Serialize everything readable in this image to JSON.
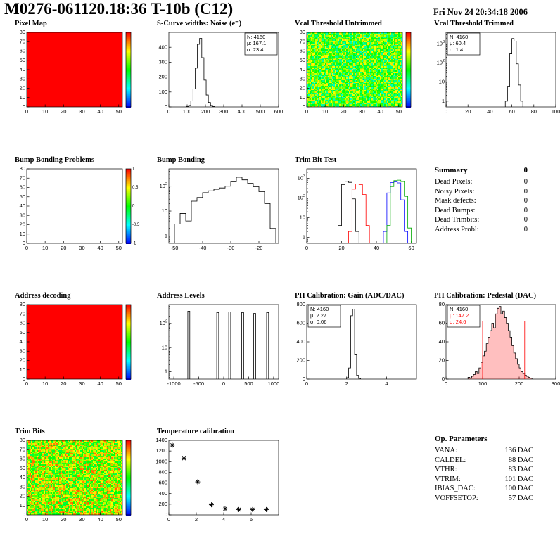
{
  "header": {
    "title": "M0276-061120.18:36 T-10b (C12)",
    "date": "Fri Nov 24 20:34:18 2006"
  },
  "summary": {
    "title": "Summary",
    "value": "0",
    "rows": [
      {
        "label": "Dead Pixels:",
        "value": "0"
      },
      {
        "label": "Noisy Pixels:",
        "value": "0"
      },
      {
        "label": "Mask defects:",
        "value": "0"
      },
      {
        "label": "Dead Bumps:",
        "value": "0"
      },
      {
        "label": "Dead Trimbits:",
        "value": "0"
      },
      {
        "label": "Address Probl:",
        "value": "0"
      }
    ]
  },
  "op_parameters": {
    "title": "Op. Parameters",
    "rows": [
      {
        "label": "VANA:",
        "value": "136 DAC"
      },
      {
        "label": "CALDEL:",
        "value": "88 DAC"
      },
      {
        "label": "VTHR:",
        "value": "83 DAC"
      },
      {
        "label": "VTRIM:",
        "value": "101 DAC"
      },
      {
        "label": "IBIAS_DAC:",
        "value": "100 DAC"
      },
      {
        "label": "VOFFSETOP:",
        "value": "57 DAC"
      }
    ]
  },
  "chart_data": [
    {
      "type": "heatmap",
      "title": "Pixel Map",
      "x": {
        "min": 0,
        "max": 52,
        "ticks": [
          0,
          10,
          20,
          30,
          40,
          50
        ]
      },
      "y": {
        "min": 0,
        "max": 80,
        "ticks": [
          0,
          10,
          20,
          30,
          40,
          50,
          60,
          70,
          80
        ]
      },
      "map": {
        "mode": "solid",
        "color": "#ff0000"
      },
      "colorbar": true
    },
    {
      "type": "hist",
      "title": "S-Curve widths: Noise (e⁻)",
      "x": {
        "min": 0,
        "max": 600,
        "ticks": [
          0,
          100,
          200,
          300,
          400,
          500,
          600
        ]
      },
      "y": {
        "min": 0,
        "max": 500,
        "ticks": [
          0,
          100,
          200,
          300,
          400
        ]
      },
      "bin_width": 12,
      "bins": [
        [
          96,
          2
        ],
        [
          108,
          10
        ],
        [
          120,
          40
        ],
        [
          132,
          120
        ],
        [
          144,
          260
        ],
        [
          156,
          420
        ],
        [
          168,
          460
        ],
        [
          180,
          330
        ],
        [
          192,
          180
        ],
        [
          204,
          80
        ],
        [
          216,
          30
        ],
        [
          228,
          10
        ],
        [
          240,
          3
        ]
      ],
      "stats": {
        "pos": "tr",
        "lines": [
          {
            "text": "N: 4160"
          },
          {
            "text": "μ: 167.1"
          },
          {
            "text": "σ: 23.4"
          }
        ]
      }
    },
    {
      "type": "heatmap",
      "title": "Vcal Threshold Untrimmed",
      "x": {
        "min": 0,
        "max": 52,
        "ticks": [
          0,
          10,
          20,
          30,
          40,
          50
        ]
      },
      "y": {
        "min": 0,
        "max": 80,
        "ticks": [
          0,
          10,
          20,
          30,
          40,
          50,
          60,
          70,
          80
        ]
      },
      "map": {
        "mode": "noise",
        "base": 0.55,
        "spread": 0.5,
        "seed": 7
      },
      "colorbar": true
    },
    {
      "type": "hist",
      "title": "Vcal Threshold Trimmed",
      "logy": true,
      "x": {
        "min": 0,
        "max": 100,
        "ticks": [
          0,
          20,
          40,
          60,
          80,
          100
        ]
      },
      "y": {
        "min": 0.5,
        "max": 4000
      },
      "bin_width": 2,
      "bins": [
        [
          54,
          1
        ],
        [
          56,
          6
        ],
        [
          58,
          300
        ],
        [
          60,
          1900
        ],
        [
          62,
          1400
        ],
        [
          64,
          90
        ],
        [
          66,
          7
        ],
        [
          68,
          1
        ]
      ],
      "stats": {
        "pos": "tl",
        "lines": [
          {
            "text": "N: 4160"
          },
          {
            "text": "μ: 60.4"
          },
          {
            "text": "σ: 1.4"
          }
        ]
      }
    },
    {
      "type": "heatmap",
      "title": "Bump Bonding Problems",
      "x": {
        "min": 0,
        "max": 52,
        "ticks": [
          0,
          10,
          20,
          30,
          40,
          50
        ]
      },
      "y": {
        "min": 0,
        "max": 80,
        "ticks": [
          0,
          10,
          20,
          30,
          40,
          50,
          60,
          70,
          80
        ]
      },
      "map": {
        "mode": "empty"
      },
      "colorbar": true,
      "colorbar_labels": [
        "1",
        "0.5",
        "0",
        "-0.5",
        "-1"
      ]
    },
    {
      "type": "hist",
      "title": "Bump Bonding",
      "logy": true,
      "x": {
        "min": -52,
        "max": -13,
        "ticks": [
          -50,
          -40,
          -30,
          -20
        ]
      },
      "y": {
        "min": 0.5,
        "max": 500
      },
      "bin_width": 2,
      "bins": [
        [
          -50,
          3
        ],
        [
          -48,
          8
        ],
        [
          -46,
          4
        ],
        [
          -44,
          25
        ],
        [
          -42,
          35
        ],
        [
          -40,
          55
        ],
        [
          -38,
          65
        ],
        [
          -36,
          75
        ],
        [
          -34,
          85
        ],
        [
          -32,
          100
        ],
        [
          -30,
          150
        ],
        [
          -28,
          230
        ],
        [
          -26,
          180
        ],
        [
          -24,
          130
        ],
        [
          -22,
          95
        ],
        [
          -20,
          60
        ],
        [
          -18,
          20
        ],
        [
          -16,
          2
        ]
      ]
    },
    {
      "type": "multihist",
      "title": "Trim Bit Test",
      "logy": true,
      "x": {
        "min": 0,
        "max": 63,
        "ticks": [
          0,
          20,
          40,
          60
        ]
      },
      "y": {
        "min": 0.5,
        "max": 3000
      },
      "bin_width": 2,
      "series": [
        {
          "color": "#000000",
          "bins": [
            [
              18,
              4
            ],
            [
              20,
              480
            ],
            [
              22,
              700
            ],
            [
              24,
              620
            ],
            [
              26,
              90
            ],
            [
              28,
              2
            ]
          ]
        },
        {
          "color": "#ff0000",
          "bins": [
            [
              24,
              2
            ],
            [
              26,
              280
            ],
            [
              28,
              520
            ],
            [
              30,
              480
            ],
            [
              32,
              150
            ],
            [
              34,
              4
            ]
          ]
        },
        {
          "color": "#0000ff",
          "bins": [
            [
              44,
              2
            ],
            [
              46,
              180
            ],
            [
              48,
              600
            ],
            [
              50,
              650
            ],
            [
              52,
              580
            ],
            [
              54,
              80
            ],
            [
              56,
              2
            ]
          ]
        },
        {
          "color": "#00aa00",
          "bins": [
            [
              46,
              4
            ],
            [
              48,
              380
            ],
            [
              50,
              760
            ],
            [
              52,
              800
            ],
            [
              54,
              680
            ],
            [
              56,
              120
            ],
            [
              58,
              3
            ]
          ]
        }
      ]
    },
    {
      "type": "heatmap",
      "title": "Address decoding",
      "x": {
        "min": 0,
        "max": 52,
        "ticks": [
          0,
          10,
          20,
          30,
          40,
          50
        ]
      },
      "y": {
        "min": 0,
        "max": 80,
        "ticks": [
          0,
          10,
          20,
          30,
          40,
          50,
          60,
          70,
          80
        ]
      },
      "map": {
        "mode": "solid",
        "color": "#ff0000"
      },
      "colorbar": true
    },
    {
      "type": "spikes",
      "title": "Address Levels",
      "logy": true,
      "x": {
        "min": -1100,
        "max": 1100,
        "ticks": [
          -1000,
          -500,
          0,
          500,
          1000
        ]
      },
      "y": {
        "min": 0.5,
        "max": 600
      },
      "spike_width": 40,
      "points": [
        [
          -700,
          320
        ],
        [
          -120,
          280
        ],
        [
          120,
          300
        ],
        [
          380,
          280
        ],
        [
          620,
          260
        ],
        [
          880,
          280
        ]
      ]
    },
    {
      "type": "hist",
      "title": "PH Calibration: Gain (ADC/DAC)",
      "x": {
        "min": 0,
        "max": 5.5,
        "ticks": [
          0,
          2,
          4
        ]
      },
      "y": {
        "min": 0,
        "max": 800,
        "ticks": [
          0,
          200,
          400,
          600,
          800
        ]
      },
      "bin_width": 0.1,
      "bins": [
        [
          2.0,
          15
        ],
        [
          2.1,
          120
        ],
        [
          2.2,
          680
        ],
        [
          2.3,
          750
        ],
        [
          2.4,
          260
        ],
        [
          2.5,
          40
        ],
        [
          2.6,
          8
        ]
      ],
      "stats": {
        "pos": "tl",
        "lines": [
          {
            "text": "N: 4160"
          },
          {
            "text": "μ: 2.27"
          },
          {
            "text": "σ: 0.06"
          }
        ]
      }
    },
    {
      "type": "hist",
      "title": "PH Calibration: Pedestal (DAC)",
      "x": {
        "min": 0,
        "max": 300,
        "ticks": [
          0,
          100,
          200,
          300
        ]
      },
      "y": {
        "min": 0,
        "max": 80,
        "ticks": [
          0,
          20,
          40,
          60,
          80
        ]
      },
      "bin_width": 5,
      "fill": "rgba(255,0,0,0.25)",
      "bins": [
        [
          60,
          2
        ],
        [
          65,
          1
        ],
        [
          70,
          3
        ],
        [
          75,
          5
        ],
        [
          80,
          8
        ],
        [
          85,
          6
        ],
        [
          90,
          12
        ],
        [
          95,
          18
        ],
        [
          100,
          25
        ],
        [
          105,
          30
        ],
        [
          110,
          38
        ],
        [
          115,
          45
        ],
        [
          120,
          52
        ],
        [
          125,
          60
        ],
        [
          130,
          55
        ],
        [
          135,
          70
        ],
        [
          140,
          76
        ],
        [
          145,
          78
        ],
        [
          150,
          70
        ],
        [
          155,
          73
        ],
        [
          160,
          66
        ],
        [
          165,
          60
        ],
        [
          170,
          52
        ],
        [
          175,
          45
        ],
        [
          180,
          36
        ],
        [
          185,
          28
        ],
        [
          190,
          22
        ],
        [
          195,
          16
        ],
        [
          200,
          12
        ],
        [
          205,
          8
        ],
        [
          210,
          6
        ],
        [
          215,
          4
        ],
        [
          220,
          3
        ],
        [
          225,
          2
        ],
        [
          230,
          1
        ]
      ],
      "vlines": [
        {
          "x": 100,
          "y": 62,
          "color": "#ff0000"
        },
        {
          "x": 215,
          "y": 62,
          "color": "#ff0000"
        }
      ],
      "stats": {
        "pos": "tl",
        "lines": [
          {
            "text": "N: 4160",
            "color": "#000000"
          },
          {
            "text": "μ: 147.2",
            "color": "#ff0000"
          },
          {
            "text": "σ: 24.6",
            "color": "#ff0000"
          }
        ]
      }
    },
    {
      "type": "heatmap",
      "title": "Trim Bits",
      "x": {
        "min": 0,
        "max": 52,
        "ticks": [
          0,
          10,
          20,
          30,
          40,
          50
        ]
      },
      "y": {
        "min": 0,
        "max": 80,
        "ticks": [
          0,
          10,
          20,
          30,
          40,
          50,
          60,
          70,
          80
        ]
      },
      "map": {
        "mode": "noise",
        "base": 0.66,
        "spread": 0.5,
        "seed": 13
      },
      "colorbar": true
    },
    {
      "type": "scatter",
      "title": "Temperature calibration",
      "x": {
        "min": 0,
        "max": 8,
        "ticks": [
          0,
          2,
          4,
          6
        ]
      },
      "y": {
        "min": 0,
        "max": 1400,
        "ticks": [
          0,
          200,
          400,
          600,
          800,
          1000,
          1200,
          1400
        ]
      },
      "points": [
        [
          0.25,
          1310
        ],
        [
          1.1,
          1060
        ],
        [
          2.1,
          620
        ],
        [
          3.1,
          190
        ],
        [
          4.1,
          115
        ],
        [
          5.1,
          100
        ],
        [
          6.1,
          100
        ],
        [
          7.1,
          100
        ]
      ]
    }
  ]
}
